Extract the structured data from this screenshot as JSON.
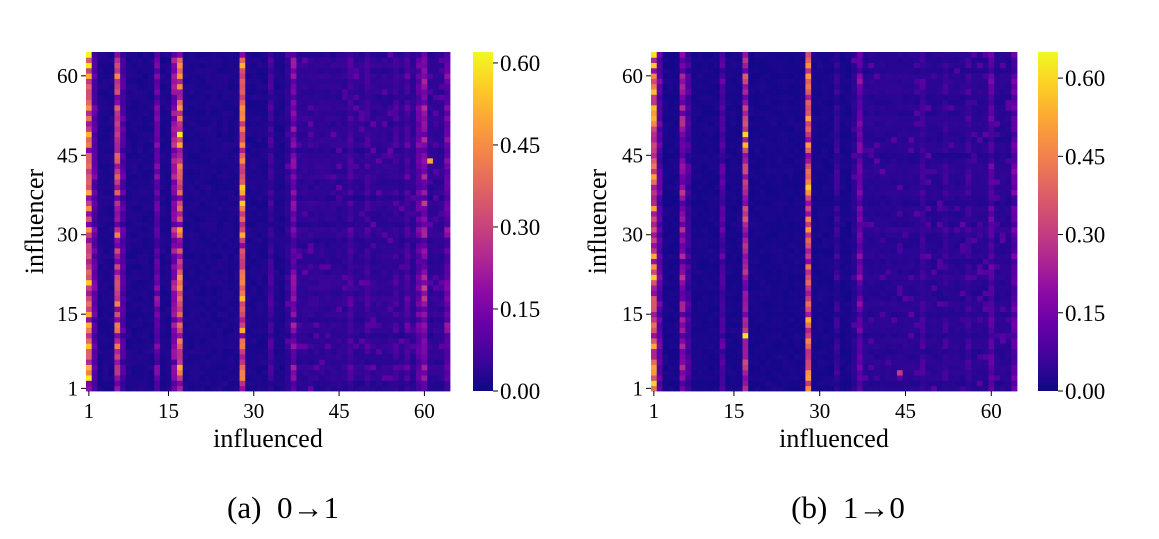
{
  "colormap": [
    "#0d0887",
    "#41049d",
    "#6a00a8",
    "#8f0da4",
    "#b12a90",
    "#cc4778",
    "#e16462",
    "#f2844b",
    "#fca636",
    "#fcce25",
    "#f0f921"
  ],
  "chart_data": [
    {
      "type": "heatmap",
      "caption": "(a)  0→1",
      "xlabel": "influenced",
      "ylabel": "influencer",
      "x_range": [
        1,
        64
      ],
      "y_range": [
        1,
        64
      ],
      "x_ticks": [
        "1",
        "15",
        "30",
        "45",
        "60"
      ],
      "y_ticks": [
        "1",
        "15",
        "30",
        "45",
        "60"
      ],
      "colorbar_ticks": [
        "0.00",
        "0.15",
        "0.30",
        "0.45",
        "0.60"
      ],
      "vmin": 0.0,
      "vmax": 0.62,
      "background": 0.02,
      "strong_columns": [
        {
          "x": 1,
          "value": 0.38
        },
        {
          "x": 2,
          "value": 0.12
        },
        {
          "x": 6,
          "value": 0.3
        },
        {
          "x": 7,
          "value": 0.1
        },
        {
          "x": 13,
          "value": 0.14
        },
        {
          "x": 16,
          "value": 0.2
        },
        {
          "x": 17,
          "value": 0.36
        },
        {
          "x": 28,
          "value": 0.4
        },
        {
          "x": 33,
          "value": 0.07
        },
        {
          "x": 37,
          "value": 0.16
        },
        {
          "x": 47,
          "value": 0.08
        },
        {
          "x": 50,
          "value": 0.07
        },
        {
          "x": 55,
          "value": 0.07
        },
        {
          "x": 57,
          "value": 0.09
        },
        {
          "x": 59,
          "value": 0.12
        },
        {
          "x": 60,
          "value": 0.2
        },
        {
          "x": 64,
          "value": 0.14
        }
      ],
      "hot_cells": [
        {
          "x": 1,
          "y": 64,
          "value": 0.62
        },
        {
          "x": 1,
          "y": 62,
          "value": 0.6
        },
        {
          "x": 1,
          "y": 3,
          "value": 0.6
        },
        {
          "x": 1,
          "y": 49,
          "value": 0.52
        },
        {
          "x": 17,
          "y": 49,
          "value": 0.6
        },
        {
          "x": 17,
          "y": 47,
          "value": 0.5
        },
        {
          "x": 17,
          "y": 31,
          "value": 0.48
        },
        {
          "x": 28,
          "y": 39,
          "value": 0.55
        },
        {
          "x": 61,
          "y": 44,
          "value": 0.5
        },
        {
          "x": 17,
          "y": 4,
          "value": 0.42
        }
      ]
    },
    {
      "type": "heatmap",
      "caption": "(b)  1→0",
      "xlabel": "influenced",
      "ylabel": "influencer",
      "x_range": [
        1,
        64
      ],
      "y_range": [
        1,
        64
      ],
      "x_ticks": [
        "1",
        "15",
        "30",
        "45",
        "60"
      ],
      "y_ticks": [
        "1",
        "15",
        "30",
        "45",
        "60"
      ],
      "colorbar_ticks": [
        "0.00",
        "0.15",
        "0.30",
        "0.45",
        "0.60"
      ],
      "vmin": 0.0,
      "vmax": 0.65,
      "background": 0.015,
      "strong_columns": [
        {
          "x": 1,
          "value": 0.4
        },
        {
          "x": 2,
          "value": 0.12
        },
        {
          "x": 6,
          "value": 0.2
        },
        {
          "x": 7,
          "value": 0.08
        },
        {
          "x": 13,
          "value": 0.1
        },
        {
          "x": 17,
          "value": 0.28
        },
        {
          "x": 28,
          "value": 0.4
        },
        {
          "x": 33,
          "value": 0.06
        },
        {
          "x": 37,
          "value": 0.14
        },
        {
          "x": 48,
          "value": 0.07
        },
        {
          "x": 52,
          "value": 0.06
        },
        {
          "x": 56,
          "value": 0.07
        },
        {
          "x": 60,
          "value": 0.12
        },
        {
          "x": 64,
          "value": 0.12
        }
      ],
      "hot_cells": [
        {
          "x": 1,
          "y": 64,
          "value": 0.62
        },
        {
          "x": 1,
          "y": 62,
          "value": 0.58
        },
        {
          "x": 1,
          "y": 2,
          "value": 0.6
        },
        {
          "x": 1,
          "y": 53,
          "value": 0.5
        },
        {
          "x": 17,
          "y": 49,
          "value": 0.6
        },
        {
          "x": 17,
          "y": 47,
          "value": 0.55
        },
        {
          "x": 17,
          "y": 11,
          "value": 0.62
        },
        {
          "x": 28,
          "y": 39,
          "value": 0.58
        },
        {
          "x": 44,
          "y": 4,
          "value": 0.3
        }
      ]
    }
  ]
}
